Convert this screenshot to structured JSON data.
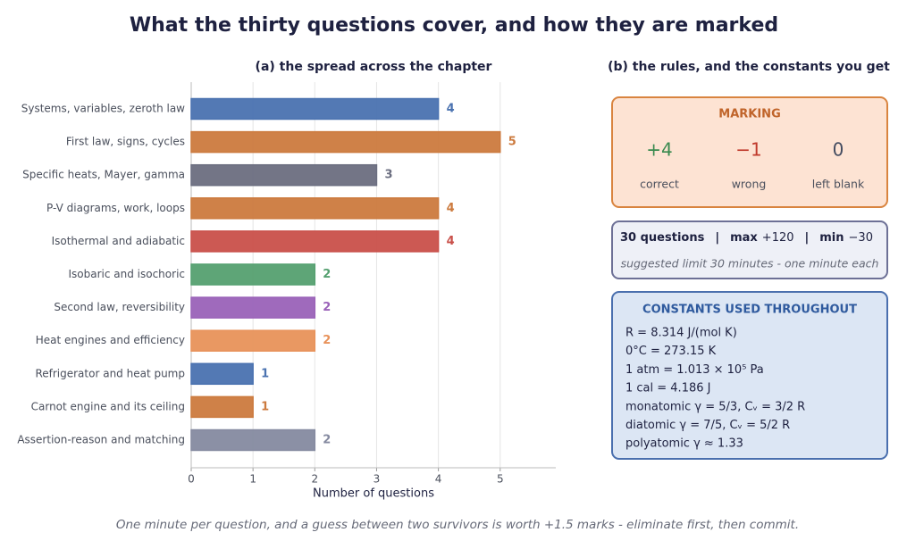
{
  "title": "What the thirty questions cover, and how they are marked",
  "chart_data": {
    "type": "bar",
    "orientation": "horizontal",
    "subtitle": "(a) the spread across the chapter",
    "categories": [
      "Systems, variables, zeroth law",
      "First law, signs, cycles",
      "Specific heats, Mayer, gamma",
      "P-V diagrams, work, loops",
      "Isothermal and adiabatic",
      "Isobaric and isochoric",
      "Second law, reversibility",
      "Heat engines and efficiency",
      "Refrigerator and heat pump",
      "Carnot engine and its ceiling",
      "Assertion-reason and matching"
    ],
    "values": [
      4,
      5,
      3,
      4,
      4,
      2,
      2,
      2,
      1,
      1,
      2
    ],
    "colors": [
      "#4a72b0",
      "#cc7a3e",
      "#6b6e80",
      "#cc7a3e",
      "#c9504a",
      "#55a070",
      "#9a62b8",
      "#e8925a",
      "#4a72b0",
      "#cc7a3e",
      "#858aa0"
    ],
    "xlabel": "Number of questions",
    "xlim": [
      0,
      5.9
    ],
    "xticks": [
      0,
      1,
      2,
      3,
      4,
      5
    ],
    "grid": true
  },
  "panel_b": {
    "title": "(b) the rules, and the constants you get",
    "marking": {
      "title": "MARKING",
      "items": [
        {
          "value": "+4",
          "label": "correct",
          "color": "#3a8a4f"
        },
        {
          "value": "−1",
          "label": "wrong",
          "color": "#c0392b"
        },
        {
          "value": "0",
          "label": "left blank",
          "color": "#444c60"
        }
      ]
    },
    "summary": {
      "count": "30 questions",
      "separator": "|",
      "max_label": "max",
      "max_value": "+120",
      "min_label": "min",
      "min_value": "−30",
      "note": "suggested limit 30 minutes - one minute each"
    },
    "constants": {
      "title": "CONSTANTS USED THROUGHOUT",
      "lines": [
        "R = 8.314 J/(mol K)",
        "0°C  = 273.15 K",
        "1 atm  = 1.013 × 10⁵ Pa",
        "1 cal  = 4.186 J",
        "monatomic γ = 5/3,   Cᵥ = 3/2 R",
        "diatomic γ = 7/5,   Cᵥ = 5/2 R",
        "polyatomic γ ≈ 1.33"
      ]
    }
  },
  "footer": "One minute per question, and a guess between two survivors is worth +1.5 marks - eliminate first, then commit."
}
